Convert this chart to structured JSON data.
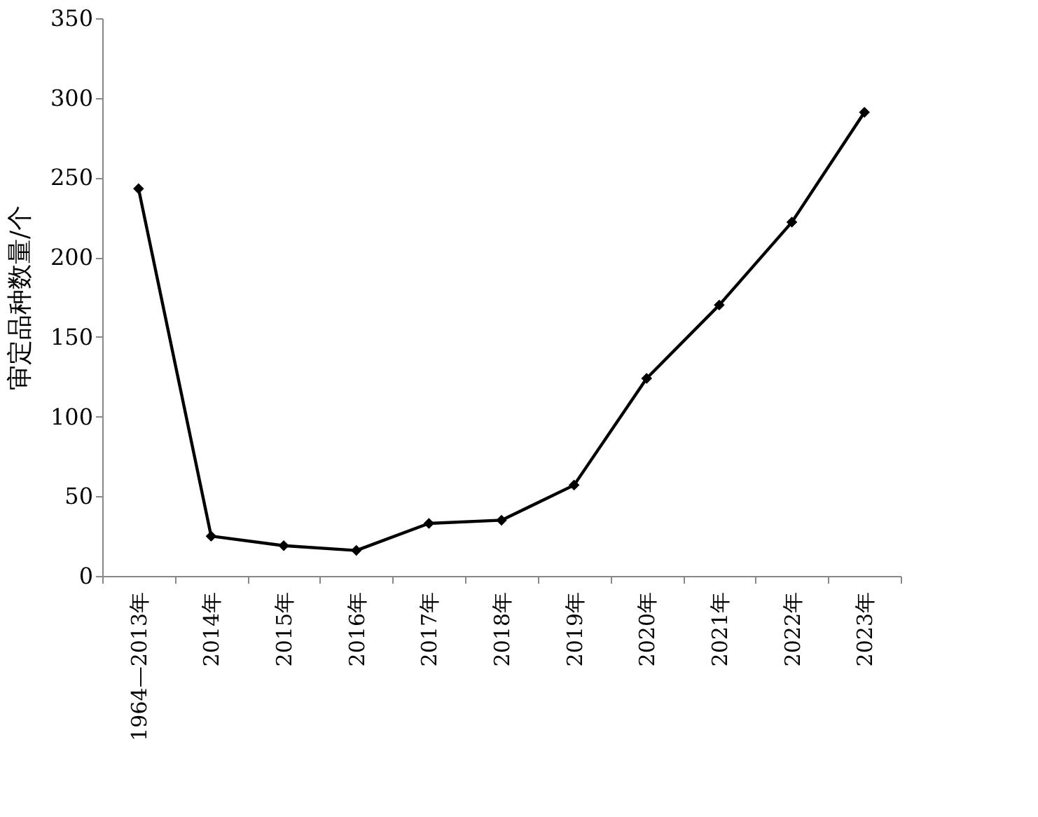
{
  "chart_data": {
    "type": "line",
    "ylabel": "审定品种数量/个",
    "categories": [
      "1964—2013年",
      "2014年",
      "2015年",
      "2016年",
      "2017年",
      "2018年",
      "2019年",
      "2020年",
      "2021年",
      "2022年",
      "2023年"
    ],
    "series": [
      {
        "color": "#000000",
        "values": [
          243,
          25,
          19,
          16,
          33,
          35,
          57,
          124,
          170,
          222,
          291
        ]
      }
    ],
    "ylim": [
      0,
      350
    ],
    "yticks": [
      0,
      50,
      100,
      150,
      200,
      250,
      300,
      350
    ],
    "grid": false,
    "marker": "diamond",
    "line_style": "solid"
  }
}
